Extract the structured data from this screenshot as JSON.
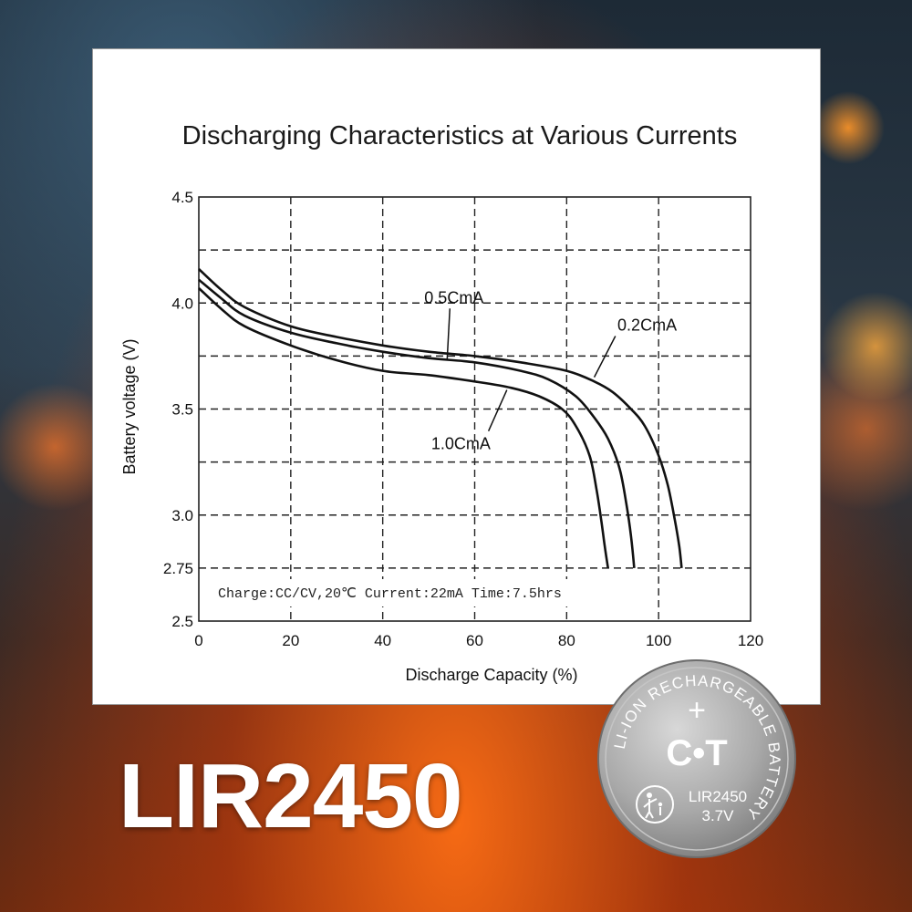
{
  "chart_data": {
    "type": "line",
    "title": "Discharging Characteristics at Various Currents",
    "xlabel": "Discharge Capacity (%)",
    "ylabel": "Battery voltage (V)",
    "xlim": [
      0,
      120
    ],
    "ylim": [
      2.5,
      4.5
    ],
    "x_ticks": [
      0,
      20,
      40,
      60,
      80,
      100,
      120
    ],
    "x_tick_labels": [
      "0",
      "20",
      "40",
      "60",
      "80",
      "100",
      "120"
    ],
    "y_ticks": [
      2.5,
      2.75,
      3.0,
      3.5,
      4.0,
      4.5
    ],
    "y_tick_labels": [
      "2.5",
      "2.75",
      "3.0",
      "3.5",
      "4.0",
      "4.5"
    ],
    "grid": true,
    "annotation": "Charge:CC/CV,20℃ Current:22mA Time:7.5hrs",
    "series": [
      {
        "name": "0.2CmA",
        "points": [
          [
            0,
            4.16
          ],
          [
            5,
            4.06
          ],
          [
            10,
            3.98
          ],
          [
            20,
            3.89
          ],
          [
            30,
            3.84
          ],
          [
            40,
            3.8
          ],
          [
            50,
            3.77
          ],
          [
            60,
            3.75
          ],
          [
            70,
            3.72
          ],
          [
            80,
            3.68
          ],
          [
            86,
            3.63
          ],
          [
            90,
            3.58
          ],
          [
            94,
            3.5
          ],
          [
            97,
            3.42
          ],
          [
            100,
            3.28
          ],
          [
            102,
            3.14
          ],
          [
            103.5,
            2.98
          ],
          [
            104.5,
            2.85
          ],
          [
            105,
            2.75
          ]
        ]
      },
      {
        "name": "0.5CmA",
        "points": [
          [
            0,
            4.11
          ],
          [
            5,
            4.02
          ],
          [
            10,
            3.94
          ],
          [
            20,
            3.86
          ],
          [
            30,
            3.81
          ],
          [
            40,
            3.77
          ],
          [
            50,
            3.74
          ],
          [
            60,
            3.72
          ],
          [
            70,
            3.68
          ],
          [
            76,
            3.64
          ],
          [
            82,
            3.56
          ],
          [
            86,
            3.46
          ],
          [
            89,
            3.36
          ],
          [
            91.5,
            3.22
          ],
          [
            93,
            3.05
          ],
          [
            94,
            2.9
          ],
          [
            94.7,
            2.75
          ]
        ]
      },
      {
        "name": "1.0CmA",
        "points": [
          [
            0,
            4.07
          ],
          [
            5,
            3.97
          ],
          [
            10,
            3.89
          ],
          [
            20,
            3.8
          ],
          [
            30,
            3.73
          ],
          [
            40,
            3.68
          ],
          [
            50,
            3.66
          ],
          [
            60,
            3.63
          ],
          [
            68,
            3.6
          ],
          [
            74,
            3.56
          ],
          [
            79,
            3.5
          ],
          [
            82,
            3.42
          ],
          [
            85,
            3.28
          ],
          [
            86.5,
            3.12
          ],
          [
            87.5,
            2.98
          ],
          [
            88.3,
            2.85
          ],
          [
            89,
            2.75
          ]
        ]
      }
    ],
    "labels": [
      {
        "series": "0.5CmA",
        "text": "0.5CmA",
        "text_at": [
          55.5,
          4.0
        ],
        "point": [
          54,
          3.73
        ]
      },
      {
        "series": "0.2CmA",
        "text": "0.2CmA",
        "text_at": [
          97.5,
          3.87
        ],
        "point": [
          86,
          3.65
        ]
      },
      {
        "series": "1.0CmA",
        "text": "1.0CmA",
        "text_at": [
          57,
          3.31
        ],
        "point": [
          67,
          3.59
        ]
      }
    ]
  },
  "product": {
    "model_text": "LIR2450",
    "coin_ring_text": "LI-ION RECHARGEABLE BATTERY",
    "coin_polarity": "+",
    "coin_brand": "C•T",
    "coin_model": "LIR2450",
    "coin_voltage": "3.7V"
  }
}
